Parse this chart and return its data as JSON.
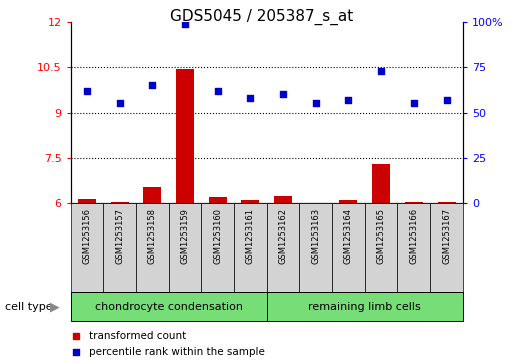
{
  "title": "GDS5045 / 205387_s_at",
  "samples": [
    "GSM1253156",
    "GSM1253157",
    "GSM1253158",
    "GSM1253159",
    "GSM1253160",
    "GSM1253161",
    "GSM1253162",
    "GSM1253163",
    "GSM1253164",
    "GSM1253165",
    "GSM1253166",
    "GSM1253167"
  ],
  "transformed_count": [
    6.15,
    6.05,
    6.55,
    10.45,
    6.2,
    6.1,
    6.25,
    6.0,
    6.1,
    7.3,
    6.05,
    6.05
  ],
  "percentile_rank": [
    62,
    55,
    65,
    99,
    62,
    58,
    60,
    55,
    57,
    73,
    55,
    57
  ],
  "ylim_left": [
    6,
    12
  ],
  "ylim_right": [
    0,
    100
  ],
  "yticks_left": [
    6,
    7.5,
    9,
    10.5,
    12
  ],
  "ytick_labels_left": [
    "6",
    "7.5",
    "9",
    "10.5",
    "12"
  ],
  "yticks_right": [
    0,
    25,
    50,
    75,
    100
  ],
  "ytick_labels_right": [
    "0",
    "25",
    "50",
    "75",
    "100%"
  ],
  "group1_label": "chondrocyte condensation",
  "group2_label": "remaining limb cells",
  "group1_indices": [
    0,
    1,
    2,
    3,
    4,
    5
  ],
  "group2_indices": [
    6,
    7,
    8,
    9,
    10,
    11
  ],
  "cell_type_label": "cell type",
  "legend_count_label": "transformed count",
  "legend_pct_label": "percentile rank within the sample",
  "bar_color": "#cc0000",
  "dot_color": "#0000cc",
  "group_bg": "#77dd77",
  "sample_bg": "#d3d3d3",
  "bar_width": 0.55,
  "dot_size": 22,
  "title_fontsize": 11,
  "tick_fontsize": 8,
  "label_fontsize": 8,
  "sample_fontsize": 6
}
